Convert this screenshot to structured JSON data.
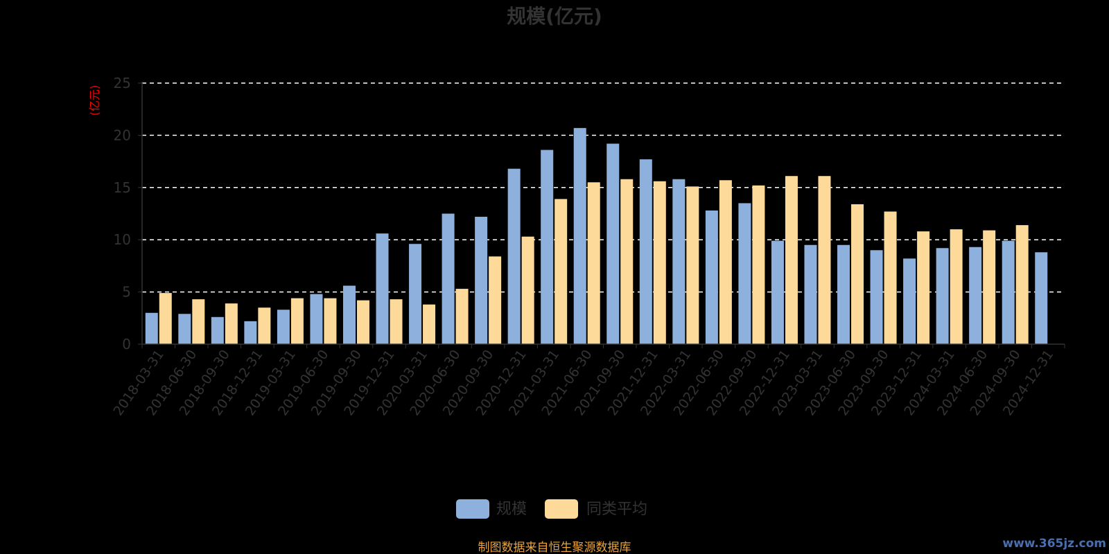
{
  "chart_data": {
    "type": "bar",
    "title": "规模(亿元)",
    "ylabel": "(亿元)",
    "xlabel": "",
    "ylim": [
      0,
      25
    ],
    "yticks": [
      0,
      5,
      10,
      15,
      20,
      25
    ],
    "grid": true,
    "legend_position": "bottom",
    "categories": [
      "2018-03-31",
      "2018-06-30",
      "2018-09-30",
      "2018-12-31",
      "2019-03-31",
      "2019-06-30",
      "2019-09-30",
      "2019-12-31",
      "2020-03-31",
      "2020-06-30",
      "2020-09-30",
      "2020-12-31",
      "2021-03-31",
      "2021-06-30",
      "2021-09-30",
      "2021-12-31",
      "2022-03-31",
      "2022-06-30",
      "2022-09-30",
      "2022-12-31",
      "2023-03-31",
      "2023-06-30",
      "2023-09-30",
      "2023-12-31",
      "2024-03-31",
      "2024-06-30",
      "2024-09-30",
      "2024-12-31"
    ],
    "series": [
      {
        "name": "规模",
        "color": "#8eb0dc",
        "values": [
          3.0,
          2.9,
          2.6,
          2.2,
          3.3,
          4.8,
          5.6,
          10.6,
          9.6,
          12.5,
          12.2,
          16.8,
          18.6,
          20.7,
          19.2,
          17.7,
          15.8,
          12.8,
          13.5,
          9.9,
          9.5,
          9.5,
          9.0,
          8.2,
          9.2,
          9.3,
          9.9,
          8.8
        ]
      },
      {
        "name": "同类平均",
        "color": "#fdd99a",
        "values": [
          4.9,
          4.3,
          3.9,
          3.5,
          4.4,
          4.4,
          4.2,
          4.3,
          3.8,
          5.3,
          8.4,
          10.3,
          13.9,
          15.5,
          15.8,
          15.6,
          15.1,
          15.7,
          15.2,
          16.1,
          16.1,
          13.4,
          12.7,
          10.8,
          11.0,
          10.9,
          11.4,
          null
        ]
      }
    ]
  },
  "legend": {
    "items": [
      "规模",
      "同类平均"
    ]
  },
  "footer": {
    "source": "制图数据来自恒生聚源数据库",
    "watermark": "www.365jz.com"
  }
}
